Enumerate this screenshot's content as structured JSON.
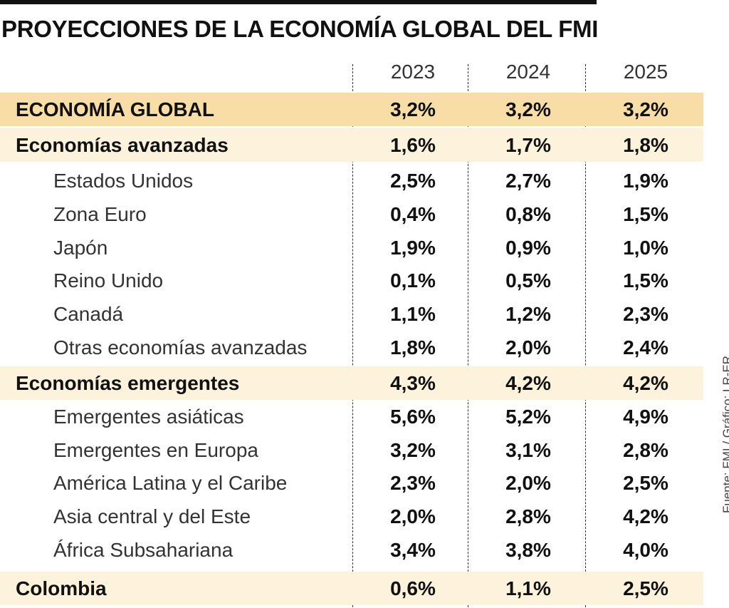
{
  "title": "PROYECCIONES DE LA ECONOMÍA GLOBAL DEL FMI",
  "source": "Fuente: FMI / Gráfico: LR-ER",
  "colors": {
    "global_row": "#f8dda6",
    "group_row": "#fdf2dc",
    "top_bar": "#111111"
  },
  "chart_data": {
    "type": "table",
    "title": "PROYECCIONES DE LA ECONOMÍA GLOBAL DEL FMI",
    "columns": [
      "2023",
      "2024",
      "2025"
    ],
    "rows": [
      {
        "label": "ECONOMÍA GLOBAL",
        "kind": "global",
        "values": [
          "3,2%",
          "3,2%",
          "3,2%"
        ]
      },
      {
        "label": "Economías avanzadas",
        "kind": "group",
        "values": [
          "1,6%",
          "1,7%",
          "1,8%"
        ]
      },
      {
        "label": "Estados Unidos",
        "kind": "item",
        "values": [
          "2,5%",
          "2,7%",
          "1,9%"
        ]
      },
      {
        "label": "Zona Euro",
        "kind": "item",
        "values": [
          "0,4%",
          "0,8%",
          "1,5%"
        ]
      },
      {
        "label": "Japón",
        "kind": "item",
        "values": [
          "1,9%",
          "0,9%",
          "1,0%"
        ]
      },
      {
        "label": "Reino Unido",
        "kind": "item",
        "values": [
          "0,1%",
          "0,5%",
          "1,5%"
        ]
      },
      {
        "label": "Canadá",
        "kind": "item",
        "values": [
          "1,1%",
          "1,2%",
          "2,3%"
        ]
      },
      {
        "label": "Otras economías avanzadas",
        "kind": "item",
        "values": [
          "1,8%",
          "2,0%",
          "2,4%"
        ]
      },
      {
        "label": "Economías emergentes",
        "kind": "group",
        "values": [
          "4,3%",
          "4,2%",
          "4,2%"
        ]
      },
      {
        "label": "Emergentes asiáticas",
        "kind": "item",
        "values": [
          "5,6%",
          "5,2%",
          "4,9%"
        ]
      },
      {
        "label": "Emergentes en Europa",
        "kind": "item",
        "values": [
          "3,2%",
          "3,1%",
          "2,8%"
        ]
      },
      {
        "label": "América Latina y el Caribe",
        "kind": "item",
        "values": [
          "2,3%",
          "2,0%",
          "2,5%"
        ]
      },
      {
        "label": "Asia central y del Este",
        "kind": "item",
        "values": [
          "2,0%",
          "2,8%",
          "4,2%"
        ]
      },
      {
        "label": "África Subsahariana",
        "kind": "item",
        "values": [
          "3,4%",
          "3,8%",
          "4,0%"
        ]
      },
      {
        "label": "Colombia",
        "kind": "group",
        "values": [
          "0,6%",
          "1,1%",
          "2,5%"
        ]
      }
    ]
  }
}
